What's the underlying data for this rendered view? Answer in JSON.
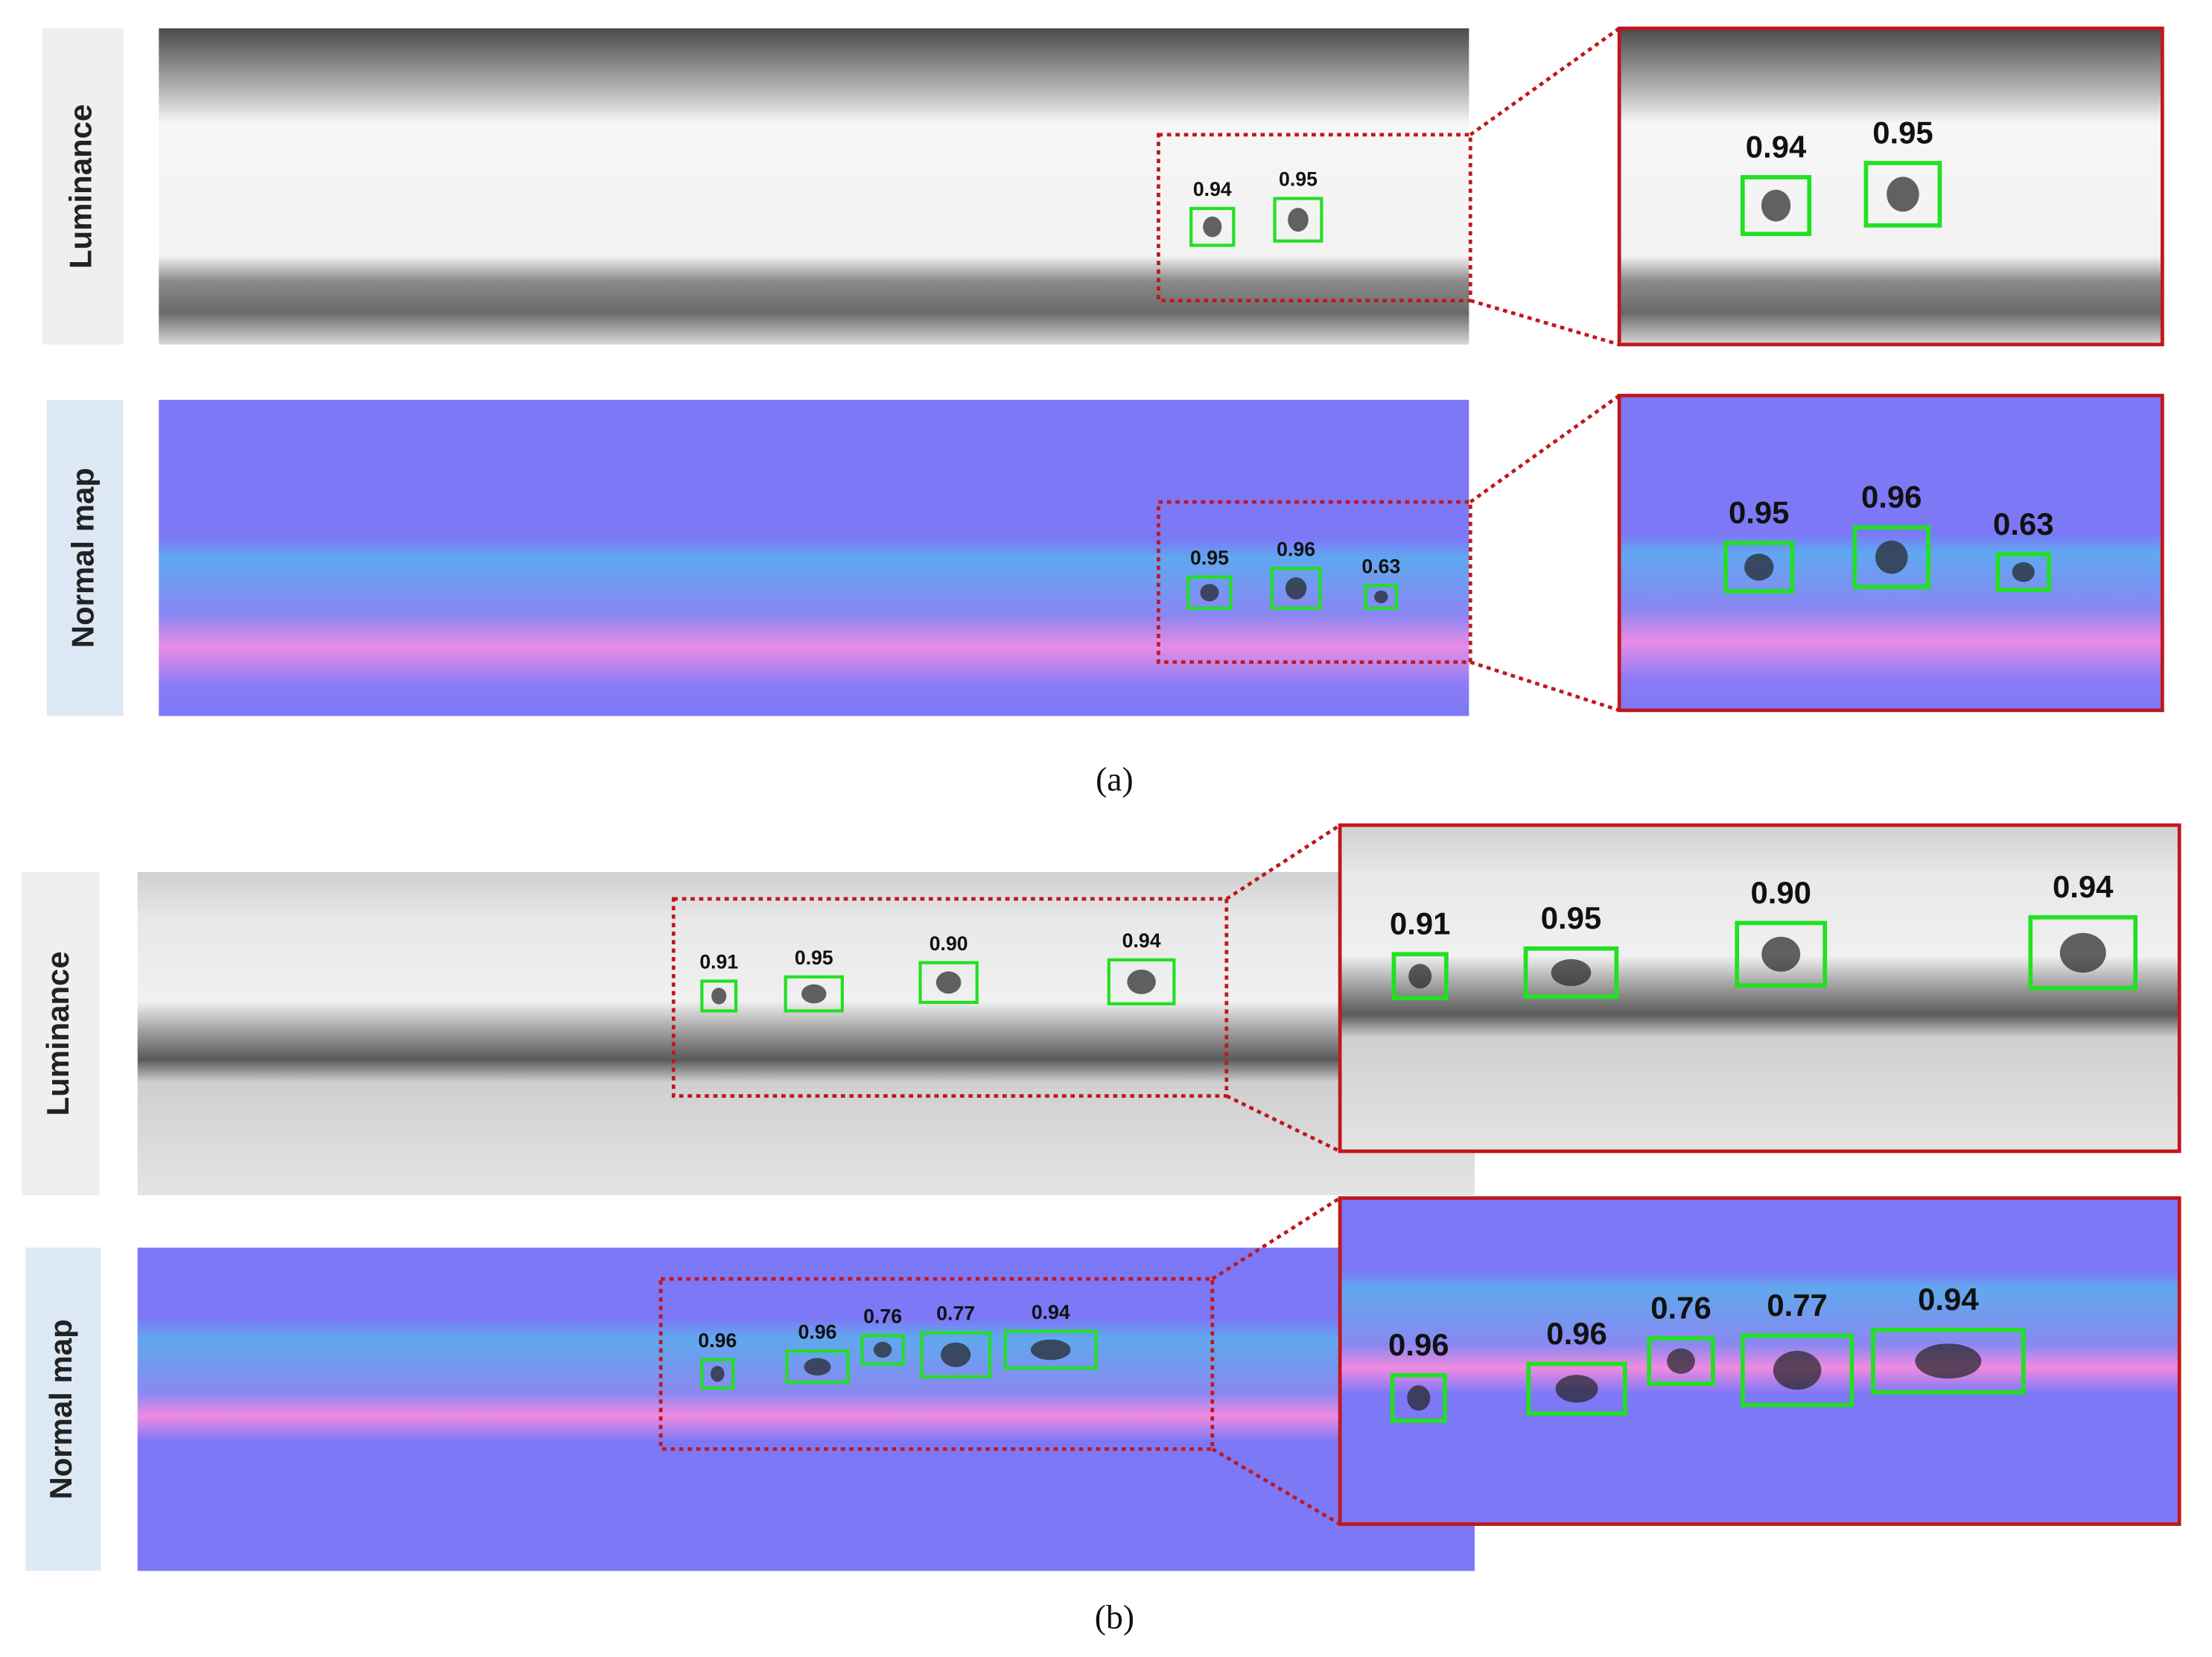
{
  "panels": [
    {
      "caption": "(a)",
      "rows": [
        {
          "label": "Luminance",
          "scores": [
            "0.94",
            "0.95"
          ],
          "zoom_scores": [
            "0.94",
            "0.95"
          ]
        },
        {
          "label": "Normal map",
          "scores": [
            "0.95",
            "0.96",
            "0.63"
          ],
          "zoom_scores": [
            "0.95",
            "0.96",
            "0.63"
          ]
        }
      ]
    },
    {
      "caption": "(b)",
      "rows": [
        {
          "label": "Luminance",
          "scores": [
            "0.91",
            "0.95",
            "0.90",
            "0.94"
          ],
          "zoom_scores": [
            "0.91",
            "0.95",
            "0.90",
            "0.94"
          ]
        },
        {
          "label": "Normal map",
          "scores": [
            "0.96",
            "0.96",
            "0.76",
            "0.77",
            "0.94"
          ],
          "zoom_scores": [
            "0.96",
            "0.96",
            "0.76",
            "0.77",
            "0.94"
          ]
        }
      ]
    }
  ]
}
